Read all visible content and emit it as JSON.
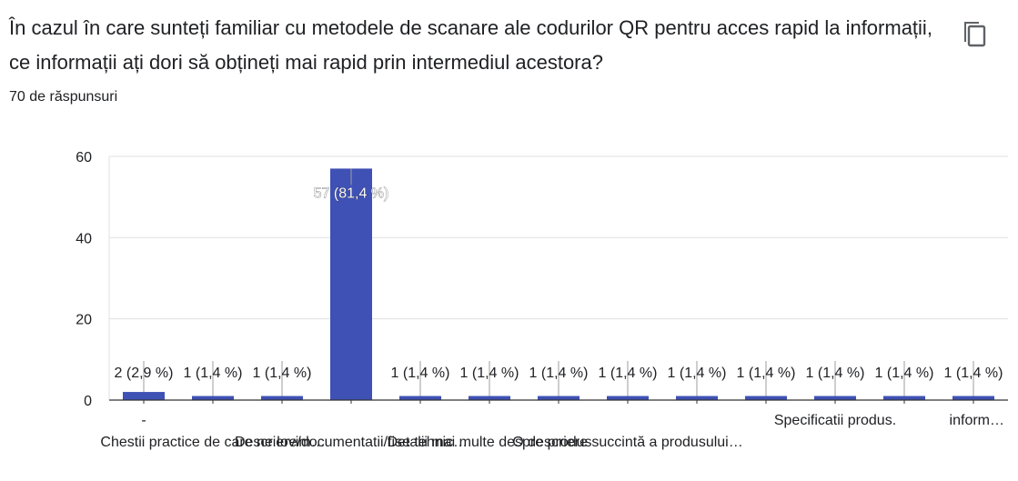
{
  "question": "În cazul în care sunteți familiar cu metodele de scanare ale codurilor QR pentru acces rapid la informații, ce informații ați dori să obțineți mai rapid prin intermediul acestora?",
  "response_count": "70 de răspunsuri",
  "icons": {
    "copy": "copy-icon"
  },
  "colors": {
    "bar": "#3f51b5",
    "grid": "#e0e0e0",
    "axis": "#333333"
  },
  "chart_data": {
    "type": "bar",
    "categories": [
      "-",
      "Chestii practice de care ne lovim…",
      "",
      "Descriere/documentatii/fise tehnic…",
      "",
      "Detalii mai multe despre produs",
      "",
      "O descriere succintă a produsului…",
      "",
      "",
      "Specificatii produs.",
      "",
      "inform…"
    ],
    "values": [
      2,
      1,
      1,
      57,
      1,
      1,
      1,
      1,
      1,
      1,
      1,
      1,
      1
    ],
    "labels": [
      "2 (2,9 %)",
      "1 (1,4 %)",
      "1 (1,4 %)",
      "57 (81,4 %)",
      "1 (1,4 %)",
      "1 (1,4 %)",
      "1 (1,4 %)",
      "1 (1,4 %)",
      "1 (1,4 %)",
      "1 (1,4 %)",
      "1 (1,4 %)",
      "1 (1,4 %)",
      "1 (1,4 %)"
    ],
    "yticks": [
      "0",
      "20",
      "40",
      "60"
    ],
    "ylim": [
      0,
      60
    ],
    "grid": true
  }
}
